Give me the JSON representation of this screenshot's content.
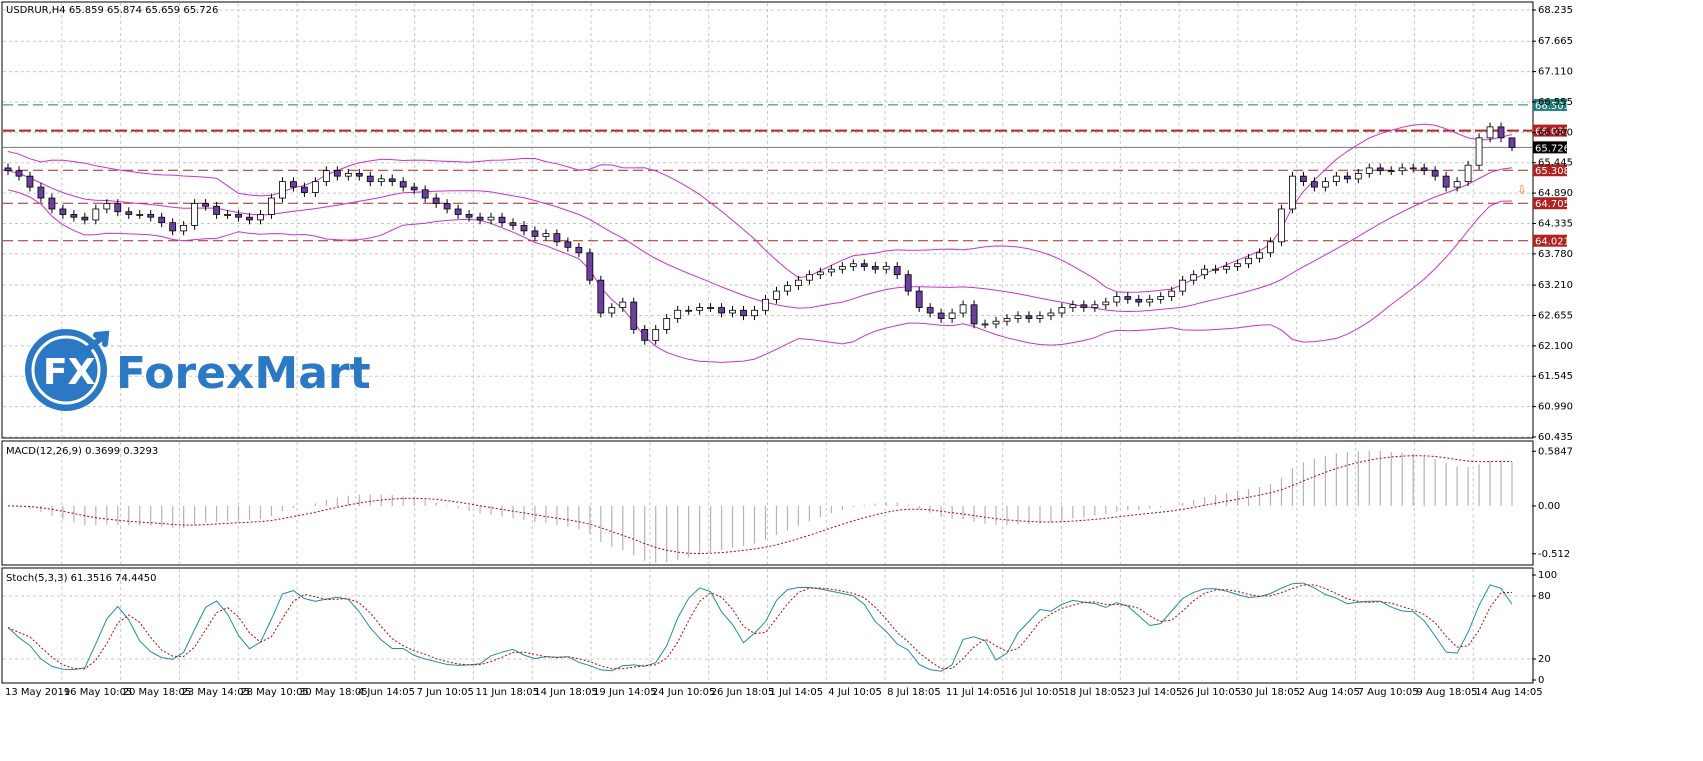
{
  "header": {
    "symbol_line": "USDRUR,H4  65.859 65.874 65.659 65.726"
  },
  "logo": {
    "name": "ForexMart",
    "glyph": "FX",
    "color": "#2b78c4"
  },
  "colors": {
    "bull": "#ffffff",
    "bear": "#6b3fa0",
    "outline": "#000000",
    "bollinger": "#cc33cc",
    "grid": "#c8c8c8",
    "level_red": "#b22222",
    "level_teal": "#1f7f7f",
    "macd_hist": "#b4b4b4",
    "macd_signal": "#c00000",
    "stoch_main": "#1f8fa0",
    "stoch_signal": "#c00000"
  },
  "chart_data": {
    "type": "candlestick",
    "symbol": "USDRUR",
    "timeframe": "H4",
    "ohlc": {
      "open": 65.859,
      "high": 65.874,
      "low": 65.659,
      "close": 65.726
    },
    "price_axis": {
      "ticks": [
        "68.235",
        "67.665",
        "67.110",
        "66.555",
        "66.000",
        "65.445",
        "64.890",
        "64.335",
        "63.780",
        "63.210",
        "62.655",
        "62.100",
        "61.545",
        "60.990",
        "60.435"
      ],
      "range": [
        60.435,
        68.235
      ]
    },
    "levels": [
      {
        "label": "66.501",
        "value": 66.501,
        "style": "dashed",
        "color": "teal"
      },
      {
        "label": "66.032",
        "value": 66.032,
        "style": "bold-dashed",
        "color": "red"
      },
      {
        "label": "65.726",
        "value": 65.726,
        "style": "current",
        "color": "black"
      },
      {
        "label": "65.308",
        "value": 65.308,
        "style": "dashed",
        "color": "red"
      },
      {
        "label": "64.705",
        "value": 64.705,
        "style": "dashed",
        "color": "red"
      },
      {
        "label": "64.021",
        "value": 64.021,
        "style": "dashed",
        "color": "red"
      }
    ],
    "closes": [
      65.3,
      65.2,
      65.0,
      64.8,
      64.6,
      64.5,
      64.45,
      64.4,
      64.6,
      64.7,
      64.55,
      64.5,
      64.5,
      64.45,
      64.35,
      64.2,
      64.3,
      64.7,
      64.65,
      64.5,
      64.5,
      64.45,
      64.4,
      64.5,
      64.8,
      65.1,
      65.0,
      64.9,
      65.1,
      65.3,
      65.2,
      65.25,
      65.2,
      65.1,
      65.15,
      65.1,
      65.0,
      64.95,
      64.8,
      64.7,
      64.6,
      64.5,
      64.45,
      64.4,
      64.45,
      64.35,
      64.3,
      64.2,
      64.1,
      64.15,
      64.0,
      63.9,
      63.8,
      63.3,
      62.7,
      62.8,
      62.9,
      62.4,
      62.2,
      62.4,
      62.6,
      62.75,
      62.75,
      62.8,
      62.8,
      62.7,
      62.75,
      62.65,
      62.75,
      62.95,
      63.1,
      63.2,
      63.3,
      63.4,
      63.45,
      63.5,
      63.55,
      63.6,
      63.55,
      63.5,
      63.55,
      63.4,
      63.1,
      62.8,
      62.7,
      62.6,
      62.7,
      62.85,
      62.5,
      62.5,
      62.55,
      62.6,
      62.65,
      62.6,
      62.65,
      62.7,
      62.8,
      62.85,
      62.8,
      62.85,
      62.9,
      63.0,
      62.95,
      62.9,
      62.95,
      63.0,
      63.1,
      63.3,
      63.4,
      63.5,
      63.5,
      63.55,
      63.6,
      63.7,
      63.8,
      64.0,
      64.6,
      65.2,
      65.1,
      65.0,
      65.1,
      65.2,
      65.15,
      65.25,
      65.35,
      65.3,
      65.3,
      65.35,
      65.35,
      65.3,
      65.2,
      65.0,
      65.1,
      65.4,
      65.9,
      66.1,
      65.9,
      65.726
    ]
  },
  "macd": {
    "label": "MACD(12,26,9) 0.3699 0.3293",
    "ticks": [
      "0.5847",
      "0.00",
      "-0.512"
    ]
  },
  "stoch": {
    "label": "Stoch(5,3,3) 61.3516 74.4450",
    "ticks": [
      "100",
      "80",
      "20",
      "0"
    ]
  },
  "time_axis": {
    "labels": [
      "13 May 2019",
      "16 May 10:05",
      "20 May 18:05",
      "23 May 14:05",
      "28 May 10:05",
      "30 May 18:05",
      "4 Jun 14:05",
      "7 Jun 10:05",
      "11 Jun 18:05",
      "14 Jun 18:05",
      "19 Jun 14:05",
      "24 Jun 10:05",
      "26 Jun 18:05",
      "1 Jul 14:05",
      "4 Jul 10:05",
      "8 Jul 18:05",
      "11 Jul 14:05",
      "16 Jul 10:05",
      "18 Jul 18:05",
      "23 Jul 14:05",
      "26 Jul 10:05",
      "30 Jul 18:05",
      "2 Aug 14:05",
      "7 Aug 10:05",
      "9 Aug 18:05",
      "14 Aug 14:05"
    ]
  }
}
